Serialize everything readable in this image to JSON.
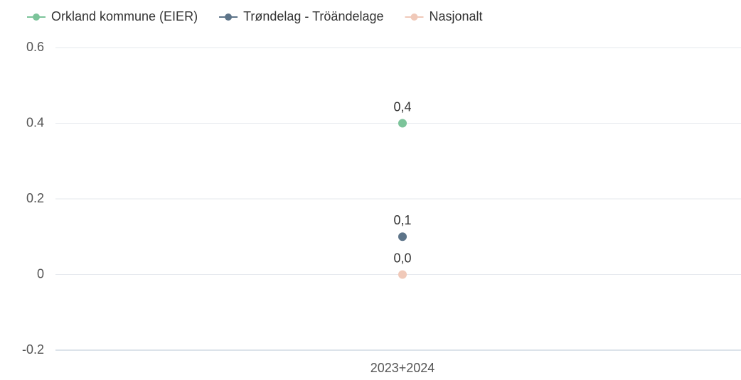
{
  "chart_data": {
    "type": "line",
    "categories": [
      "2023+2024"
    ],
    "series": [
      {
        "name": "Orkland kommune (EIER)",
        "color": "#7cc49a",
        "values": [
          0.4
        ],
        "value_labels": [
          "0,4"
        ]
      },
      {
        "name": "Trøndelag - Tröändelage",
        "color": "#5d7489",
        "values": [
          0.1
        ],
        "value_labels": [
          "0,1"
        ]
      },
      {
        "name": "Nasjonalt",
        "color": "#f0c9b9",
        "values": [
          0.0
        ],
        "value_labels": [
          "0,0"
        ]
      }
    ],
    "ylim": [
      -0.2,
      0.6
    ],
    "yticks": [
      0.6,
      0.4,
      0.2,
      0,
      -0.2
    ],
    "grid": true,
    "legend": "top-left"
  }
}
